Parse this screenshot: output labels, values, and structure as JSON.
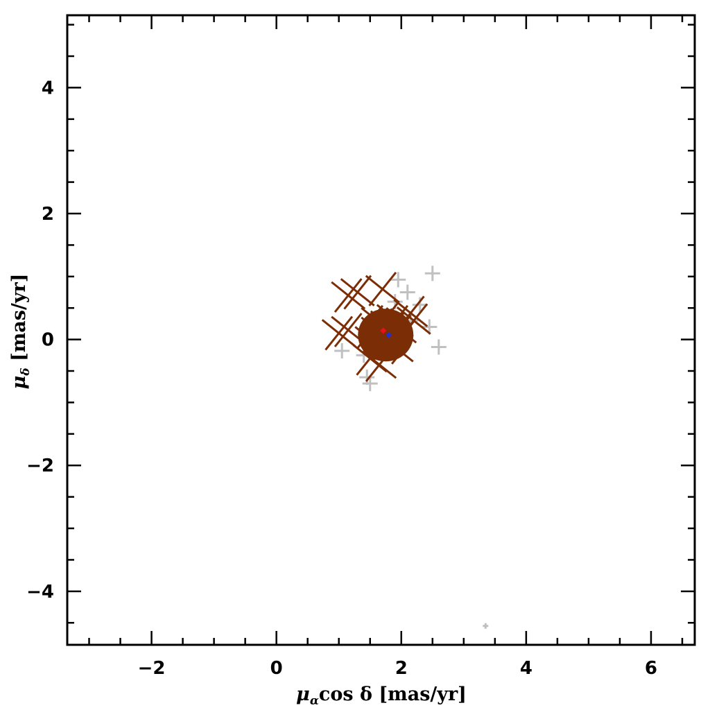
{
  "chart_data": {
    "type": "scatter",
    "xlabel": {
      "pre": "μ",
      "sub": "α",
      "post": "cos δ [mas/yr]"
    },
    "ylabel": {
      "pre": "μ",
      "sub": "δ",
      "post": " [mas/yr]"
    },
    "xlim": [
      -3.35,
      6.7
    ],
    "ylim": [
      -4.85,
      5.15
    ],
    "x_major_ticks": [
      -2,
      0,
      2,
      4,
      6
    ],
    "y_major_ticks": [
      -4,
      -2,
      0,
      2,
      4
    ],
    "x_tick_labels": [
      "−2",
      "0",
      "2",
      "4",
      "6"
    ],
    "y_tick_labels": [
      "−4",
      "−2",
      "0",
      "2",
      "4"
    ],
    "minor_tick_step": 0.5,
    "grid": false,
    "series": [
      {
        "role": "non-members",
        "color": "#c0c0c0",
        "marker": "plus",
        "points": [
          {
            "x": 1.95,
            "y": 0.95
          },
          {
            "x": 2.1,
            "y": 0.75
          },
          {
            "x": 2.5,
            "y": 1.05
          },
          {
            "x": 2.3,
            "y": 0.55
          },
          {
            "x": 2.45,
            "y": 0.2
          },
          {
            "x": 2.6,
            "y": -0.12
          },
          {
            "x": 1.05,
            "y": -0.18
          },
          {
            "x": 1.45,
            "y": -0.6
          },
          {
            "x": 1.4,
            "y": -0.25
          },
          {
            "x": 2.15,
            "y": 0.3
          },
          {
            "x": 1.5,
            "y": -0.7
          },
          {
            "x": 1.9,
            "y": 0.6
          },
          {
            "x": 3.35,
            "y": -4.55
          }
        ]
      },
      {
        "role": "members",
        "color": "#7b2e06",
        "marker": "x",
        "points": [
          {
            "x": 1.15,
            "y": 0.7
          },
          {
            "x": 1.3,
            "y": 0.75
          },
          {
            "x": 1.0,
            "y": 0.1
          },
          {
            "x": 1.15,
            "y": 0.15
          },
          {
            "x": 1.7,
            "y": 0.8
          },
          {
            "x": 2.15,
            "y": 0.42
          },
          {
            "x": 2.2,
            "y": 0.3
          },
          {
            "x": 1.65,
            "y": -0.4
          },
          {
            "x": 1.5,
            "y": -0.3
          },
          {
            "x": 2.0,
            "y": -0.2
          },
          {
            "x": 1.55,
            "y": 0.2
          },
          {
            "x": 1.9,
            "y": 0.25
          },
          {
            "x": 1.75,
            "y": 0.05
          },
          {
            "x": 1.6,
            "y": -0.05
          },
          {
            "x": 1.85,
            "y": -0.05
          },
          {
            "x": 1.7,
            "y": 0.3
          },
          {
            "x": 2.05,
            "y": 0.1
          },
          {
            "x": 1.45,
            "y": 0.05
          },
          {
            "x": 1.8,
            "y": 0.4
          },
          {
            "x": 1.95,
            "y": 0.35
          },
          {
            "x": 1.55,
            "y": 0.35
          },
          {
            "x": 1.65,
            "y": 0.15
          },
          {
            "x": 1.8,
            "y": 0.2
          },
          {
            "x": 1.9,
            "y": 0.0
          },
          {
            "x": 1.7,
            "y": -0.15
          },
          {
            "x": 2.0,
            "y": 0.2
          },
          {
            "x": 1.6,
            "y": 0.1
          }
        ]
      }
    ],
    "means": [
      {
        "x": 1.71,
        "y": 0.14,
        "color": "#e8101a",
        "marker": "diamond"
      },
      {
        "x": 1.8,
        "y": 0.07,
        "color": "#1f2fd0",
        "marker": "diamond"
      }
    ]
  }
}
